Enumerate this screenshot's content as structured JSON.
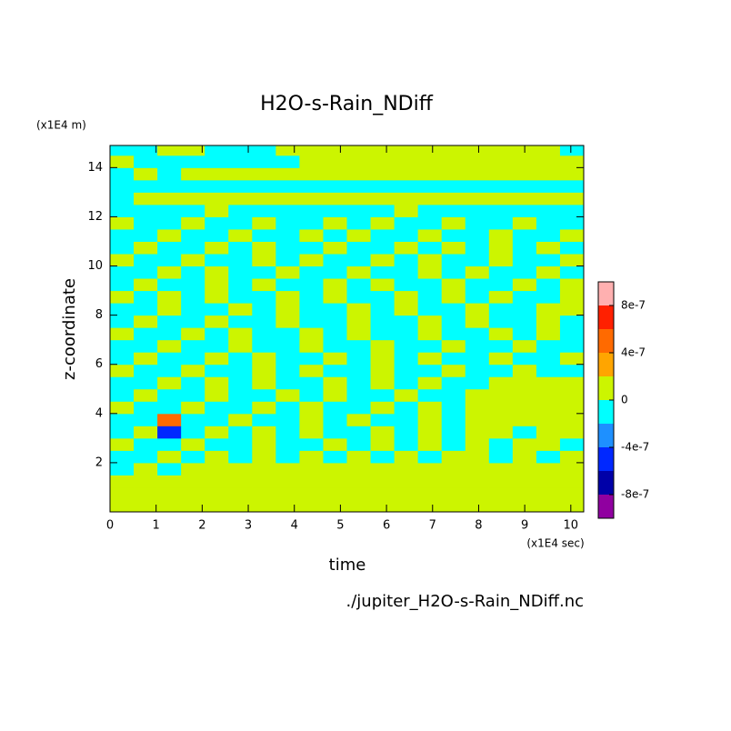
{
  "chart_data": {
    "type": "heatmap",
    "title": "H2O-s-Rain_NDiff",
    "x_label": "time",
    "x_unit": "(x1E4 sec)",
    "y_label": "z-coordinate",
    "y_unit": "(x1E4 m)",
    "footnote": "./jupiter_H2O-s-Rain_NDiff.nc",
    "xlim": [
      0,
      10.28
    ],
    "ylim": [
      0,
      14.9
    ],
    "xticks": [
      0,
      1,
      2,
      3,
      4,
      5,
      6,
      7,
      8,
      9,
      10
    ],
    "yticks": [
      2,
      4,
      6,
      8,
      10,
      12,
      14
    ],
    "xbins": [
      0,
      0.514,
      1.028,
      1.542,
      2.056,
      2.57,
      3.084,
      3.598,
      4.112,
      4.626,
      5.14,
      5.654,
      6.168,
      6.682,
      7.196,
      7.71,
      8.224,
      8.738,
      9.252,
      9.766,
      10.28
    ],
    "ybins": [
      0,
      0.5,
      1,
      1.5,
      2,
      2.5,
      3,
      3.5,
      4,
      4.5,
      5,
      5.5,
      6,
      6.5,
      7,
      7.5,
      8,
      8.5,
      9,
      9.5,
      10,
      10.5,
      11,
      11.5,
      12,
      12.5,
      13,
      13.5,
      14,
      14.5,
      14.9
    ],
    "levels": [
      -1e-06,
      -8e-07,
      -6e-07,
      -4e-07,
      -2e-07,
      0,
      2e-07,
      4e-07,
      6e-07,
      8e-07,
      1e-06
    ],
    "colors": [
      "#9000a0",
      "#0000a8",
      "#0028ff",
      "#1e90ff",
      "#00ffff",
      "#ccf500",
      "#ffa500",
      "#ff6a00",
      "#ff2000",
      "#ffb0b0"
    ],
    "colorbar_ticks": [
      {
        "value": -8e-07,
        "label": "-8e-7"
      },
      {
        "value": -4e-07,
        "label": "-4e-7"
      },
      0,
      {
        "value": 4e-07,
        "label": "4e-7"
      },
      {
        "value": 8e-07,
        "label": "8e-7"
      }
    ],
    "z": [
      [
        1e-07,
        1e-07,
        1e-07,
        1e-07,
        1e-07,
        1e-07,
        1e-07,
        1e-07,
        1e-07,
        1e-07,
        1e-07,
        1e-07,
        1e-07,
        1e-07,
        1e-07,
        1e-07,
        1e-07,
        1e-07,
        1e-07,
        1e-07
      ],
      [
        1e-07,
        1e-07,
        1e-07,
        1e-07,
        1e-07,
        1e-07,
        1e-07,
        1e-07,
        1e-07,
        1e-07,
        1e-07,
        1e-07,
        1e-07,
        1e-07,
        1e-07,
        1e-07,
        1e-07,
        1e-07,
        1e-07,
        1e-07
      ],
      [
        1e-07,
        1e-07,
        1e-07,
        1e-07,
        1e-07,
        1e-07,
        1e-07,
        1e-07,
        1e-07,
        1e-07,
        1e-07,
        1e-07,
        1e-07,
        1e-07,
        1e-07,
        1e-07,
        1e-07,
        1e-07,
        1e-07,
        1e-07
      ],
      [
        -1e-07,
        1e-07,
        -1e-07,
        1e-07,
        1e-07,
        1e-07,
        1e-07,
        1e-07,
        1e-07,
        1e-07,
        1e-07,
        1e-07,
        1e-07,
        1e-07,
        1e-07,
        1e-07,
        1e-07,
        1e-07,
        1e-07,
        1e-07
      ],
      [
        -1e-07,
        -1e-07,
        1e-07,
        -1e-07,
        1e-07,
        -1e-07,
        1e-07,
        -1e-07,
        1e-07,
        -1e-07,
        1e-07,
        -1e-07,
        1e-07,
        -1e-07,
        1e-07,
        1e-07,
        -1e-07,
        1e-07,
        -1e-07,
        1e-07
      ],
      [
        1e-07,
        -1e-07,
        -1e-07,
        1e-07,
        -1e-07,
        -1e-07,
        1e-07,
        -1e-07,
        -1e-07,
        1e-07,
        -1e-07,
        1e-07,
        -1e-07,
        1e-07,
        -1e-07,
        1e-07,
        -1e-07,
        1e-07,
        1e-07,
        -1e-07
      ],
      [
        -1e-07,
        1e-07,
        -5e-07,
        -1e-07,
        1e-07,
        -1e-07,
        1e-07,
        -1e-07,
        1e-07,
        -1e-07,
        -1e-07,
        1e-07,
        -1e-07,
        1e-07,
        -1e-07,
        1e-07,
        1e-07,
        -1e-07,
        1e-07,
        1e-07
      ],
      [
        -1e-07,
        -1e-07,
        5e-07,
        -1e-07,
        -1e-07,
        1e-07,
        -1e-07,
        -1e-07,
        1e-07,
        -1e-07,
        1e-07,
        -1e-07,
        -1e-07,
        1e-07,
        -1e-07,
        1e-07,
        1e-07,
        1e-07,
        1e-07,
        1e-07
      ],
      [
        1e-07,
        -1e-07,
        -1e-07,
        1e-07,
        -1e-07,
        -1e-07,
        1e-07,
        -1e-07,
        1e-07,
        -1e-07,
        -1e-07,
        1e-07,
        -1e-07,
        1e-07,
        -1e-07,
        1e-07,
        1e-07,
        1e-07,
        1e-07,
        1e-07
      ],
      [
        -1e-07,
        1e-07,
        -1e-07,
        -1e-07,
        1e-07,
        -1e-07,
        -1e-07,
        1e-07,
        -1e-07,
        1e-07,
        -1e-07,
        -1e-07,
        1e-07,
        -1e-07,
        -1e-07,
        1e-07,
        1e-07,
        1e-07,
        1e-07,
        1e-07
      ],
      [
        -1e-07,
        -1e-07,
        1e-07,
        -1e-07,
        1e-07,
        -1e-07,
        1e-07,
        -1e-07,
        -1e-07,
        1e-07,
        -1e-07,
        1e-07,
        -1e-07,
        1e-07,
        -1e-07,
        -1e-07,
        1e-07,
        1e-07,
        1e-07,
        1e-07
      ],
      [
        1e-07,
        -1e-07,
        -1e-07,
        1e-07,
        -1e-07,
        -1e-07,
        1e-07,
        -1e-07,
        1e-07,
        -1e-07,
        -1e-07,
        1e-07,
        -1e-07,
        -1e-07,
        1e-07,
        -1e-07,
        -1e-07,
        1e-07,
        -1e-07,
        -1e-07
      ],
      [
        -1e-07,
        1e-07,
        -1e-07,
        -1e-07,
        1e-07,
        -1e-07,
        1e-07,
        -1e-07,
        -1e-07,
        1e-07,
        -1e-07,
        1e-07,
        -1e-07,
        1e-07,
        -1e-07,
        -1e-07,
        1e-07,
        -1e-07,
        -1e-07,
        1e-07
      ],
      [
        -1e-07,
        -1e-07,
        1e-07,
        -1e-07,
        -1e-07,
        1e-07,
        -1e-07,
        -1e-07,
        1e-07,
        -1e-07,
        -1e-07,
        1e-07,
        -1e-07,
        -1e-07,
        1e-07,
        -1e-07,
        -1e-07,
        1e-07,
        -1e-07,
        -1e-07
      ],
      [
        1e-07,
        -1e-07,
        -1e-07,
        1e-07,
        -1e-07,
        1e-07,
        -1e-07,
        -1e-07,
        1e-07,
        -1e-07,
        1e-07,
        -1e-07,
        -1e-07,
        1e-07,
        -1e-07,
        -1e-07,
        1e-07,
        -1e-07,
        1e-07,
        -1e-07
      ],
      [
        -1e-07,
        1e-07,
        -1e-07,
        -1e-07,
        1e-07,
        -1e-07,
        -1e-07,
        1e-07,
        -1e-07,
        -1e-07,
        1e-07,
        -1e-07,
        -1e-07,
        1e-07,
        -1e-07,
        1e-07,
        -1e-07,
        -1e-07,
        1e-07,
        -1e-07
      ],
      [
        -1e-07,
        -1e-07,
        1e-07,
        -1e-07,
        -1e-07,
        1e-07,
        -1e-07,
        1e-07,
        -1e-07,
        -1e-07,
        1e-07,
        -1e-07,
        1e-07,
        -1e-07,
        -1e-07,
        1e-07,
        -1e-07,
        -1e-07,
        1e-07,
        1e-07
      ],
      [
        1e-07,
        -1e-07,
        1e-07,
        -1e-07,
        1e-07,
        -1e-07,
        -1e-07,
        1e-07,
        -1e-07,
        1e-07,
        -1e-07,
        -1e-07,
        1e-07,
        -1e-07,
        1e-07,
        -1e-07,
        1e-07,
        -1e-07,
        -1e-07,
        1e-07
      ],
      [
        -1e-07,
        1e-07,
        -1e-07,
        -1e-07,
        1e-07,
        -1e-07,
        1e-07,
        -1e-07,
        -1e-07,
        1e-07,
        -1e-07,
        1e-07,
        -1e-07,
        -1e-07,
        1e-07,
        -1e-07,
        -1e-07,
        1e-07,
        -1e-07,
        1e-07
      ],
      [
        -1e-07,
        -1e-07,
        1e-07,
        -1e-07,
        1e-07,
        -1e-07,
        -1e-07,
        1e-07,
        -1e-07,
        -1e-07,
        1e-07,
        -1e-07,
        -1e-07,
        1e-07,
        -1e-07,
        1e-07,
        -1e-07,
        -1e-07,
        1e-07,
        -1e-07
      ],
      [
        1e-07,
        -1e-07,
        -1e-07,
        1e-07,
        -1e-07,
        -1e-07,
        1e-07,
        -1e-07,
        1e-07,
        -1e-07,
        -1e-07,
        1e-07,
        -1e-07,
        1e-07,
        -1e-07,
        -1e-07,
        1e-07,
        -1e-07,
        -1e-07,
        1e-07
      ],
      [
        -1e-07,
        1e-07,
        -1e-07,
        -1e-07,
        1e-07,
        -1e-07,
        1e-07,
        -1e-07,
        -1e-07,
        1e-07,
        -1e-07,
        -1e-07,
        1e-07,
        -1e-07,
        1e-07,
        -1e-07,
        1e-07,
        -1e-07,
        1e-07,
        -1e-07
      ],
      [
        -1e-07,
        -1e-07,
        1e-07,
        -1e-07,
        -1e-07,
        1e-07,
        -1e-07,
        -1e-07,
        1e-07,
        -1e-07,
        1e-07,
        -1e-07,
        -1e-07,
        1e-07,
        -1e-07,
        -1e-07,
        1e-07,
        -1e-07,
        -1e-07,
        1e-07
      ],
      [
        1e-07,
        -1e-07,
        -1e-07,
        1e-07,
        -1e-07,
        -1e-07,
        1e-07,
        -1e-07,
        -1e-07,
        1e-07,
        -1e-07,
        1e-07,
        -1e-07,
        -1e-07,
        1e-07,
        -1e-07,
        -1e-07,
        1e-07,
        -1e-07,
        -1e-07
      ],
      [
        -1e-07,
        -1e-07,
        -1e-07,
        -1e-07,
        1e-07,
        -1e-07,
        -1e-07,
        -1e-07,
        -1e-07,
        -1e-07,
        -1e-07,
        -1e-07,
        1e-07,
        -1e-07,
        -1e-07,
        -1e-07,
        -1e-07,
        -1e-07,
        -1e-07,
        -1e-07
      ],
      [
        -1e-07,
        1e-07,
        1e-07,
        1e-07,
        1e-07,
        1e-07,
        1e-07,
        1e-07,
        1e-07,
        1e-07,
        1e-07,
        1e-07,
        1e-07,
        1e-07,
        1e-07,
        1e-07,
        1e-07,
        1e-07,
        1e-07,
        1e-07
      ],
      [
        -1e-07,
        -1e-07,
        -1e-07,
        -1e-07,
        -1e-07,
        -1e-07,
        -1e-07,
        -1e-07,
        -1e-07,
        -1e-07,
        -1e-07,
        -1e-07,
        -1e-07,
        -1e-07,
        -1e-07,
        -1e-07,
        -1e-07,
        -1e-07,
        -1e-07,
        -1e-07
      ],
      [
        -1e-07,
        1e-07,
        -1e-07,
        1e-07,
        1e-07,
        1e-07,
        1e-07,
        1e-07,
        1e-07,
        1e-07,
        1e-07,
        1e-07,
        1e-07,
        1e-07,
        1e-07,
        1e-07,
        1e-07,
        1e-07,
        1e-07,
        1e-07
      ],
      [
        1e-07,
        -1e-07,
        -1e-07,
        -1e-07,
        -1e-07,
        -1e-07,
        -1e-07,
        -1e-07,
        1e-07,
        1e-07,
        1e-07,
        1e-07,
        1e-07,
        1e-07,
        1e-07,
        1e-07,
        1e-07,
        1e-07,
        1e-07,
        1e-07
      ],
      [
        -1e-07,
        -1e-07,
        1e-07,
        1e-07,
        -1e-07,
        -1e-07,
        -1e-07,
        1e-07,
        1e-07,
        1e-07,
        1e-07,
        1e-07,
        1e-07,
        1e-07,
        1e-07,
        1e-07,
        1e-07,
        1e-07,
        1e-07,
        -1e-07
      ]
    ]
  }
}
